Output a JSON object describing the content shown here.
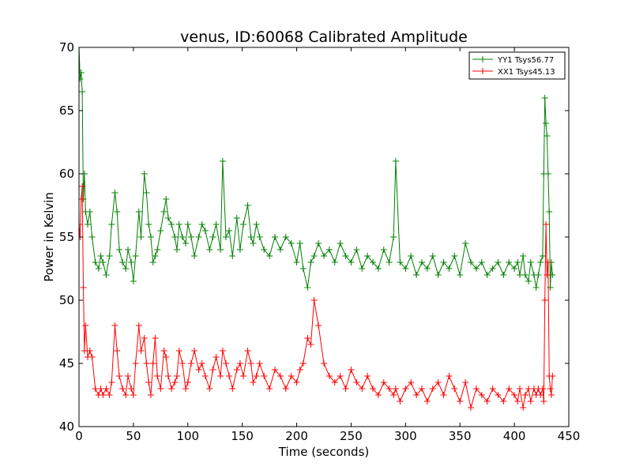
{
  "chart_data": {
    "type": "line",
    "title": "venus, ID:60068 Calibrated Amplitude",
    "xlabel": "Time (seconds)",
    "ylabel": "Power in Kelvin",
    "xlim": [
      0,
      450
    ],
    "ylim": [
      40,
      70
    ],
    "xticks": [
      0,
      50,
      100,
      150,
      200,
      250,
      300,
      350,
      400,
      450
    ],
    "yticks": [
      40,
      45,
      50,
      55,
      60,
      65,
      70
    ],
    "legend_position": "top-right",
    "marker": "+",
    "series": [
      {
        "name": "YY1 Tsys56.77",
        "color": "#008000",
        "x": [
          0,
          1,
          2,
          3,
          4,
          5,
          6,
          8,
          10,
          12,
          15,
          18,
          20,
          22,
          25,
          28,
          30,
          33,
          35,
          37,
          40,
          43,
          45,
          48,
          50,
          52,
          55,
          57,
          60,
          62,
          64,
          66,
          68,
          70,
          72,
          75,
          78,
          80,
          82,
          85,
          88,
          90,
          92,
          95,
          98,
          100,
          103,
          106,
          110,
          113,
          116,
          120,
          123,
          126,
          130,
          132,
          135,
          138,
          141,
          145,
          148,
          151,
          155,
          158,
          160,
          163,
          166,
          170,
          175,
          180,
          185,
          190,
          195,
          200,
          203,
          206,
          210,
          213,
          216,
          220,
          225,
          230,
          235,
          240,
          245,
          250,
          255,
          260,
          265,
          270,
          275,
          280,
          285,
          289,
          291,
          295,
          300,
          305,
          310,
          315,
          320,
          325,
          330,
          335,
          340,
          345,
          350,
          355,
          360,
          365,
          370,
          375,
          380,
          385,
          390,
          395,
          400,
          403,
          405,
          408,
          410,
          413,
          415,
          418,
          420,
          422,
          424,
          426,
          427,
          428,
          429,
          430,
          431,
          432,
          433,
          434,
          435
        ],
        "values": [
          70,
          67.5,
          68,
          66.5,
          58,
          60,
          57,
          56,
          57,
          55,
          53,
          52.5,
          53.5,
          53,
          52,
          53.5,
          56,
          58.5,
          57,
          54,
          53,
          52.5,
          54,
          53,
          51.5,
          53.5,
          57,
          55,
          60,
          58.5,
          56,
          55,
          53,
          53.5,
          54,
          55.5,
          57,
          58,
          56.5,
          56,
          55,
          54,
          56,
          55,
          54.5,
          56,
          55,
          53.5,
          55,
          56,
          55.5,
          54,
          55,
          56,
          54,
          61,
          55,
          55.5,
          53.5,
          56.5,
          54,
          56,
          57.5,
          55,
          54.5,
          56,
          55,
          54,
          53.5,
          55,
          54,
          55,
          54.5,
          53,
          54.5,
          52.5,
          51,
          53,
          53.5,
          54.5,
          53.5,
          54,
          53,
          54.5,
          53.5,
          53,
          54,
          52.5,
          53.5,
          53,
          52.5,
          54,
          53,
          55,
          61,
          53,
          52.5,
          53.5,
          52,
          53,
          52.5,
          53.5,
          52,
          53,
          52.5,
          53.5,
          52,
          54.5,
          53,
          52.5,
          53,
          52,
          52.5,
          53,
          52,
          53,
          52.5,
          53,
          52,
          53.5,
          52,
          51.5,
          53,
          52,
          51,
          52,
          53,
          53.5,
          60,
          66,
          64,
          63,
          60,
          57,
          51,
          53,
          52
        ]
      },
      {
        "name": "XX1 Tsys45.13",
        "color": "#ff0000",
        "x": [
          0,
          1,
          2,
          3,
          4,
          5,
          6,
          8,
          10,
          12,
          15,
          18,
          20,
          22,
          25,
          28,
          30,
          33,
          35,
          37,
          40,
          43,
          45,
          48,
          50,
          52,
          55,
          57,
          60,
          62,
          64,
          66,
          68,
          70,
          72,
          75,
          78,
          80,
          82,
          85,
          88,
          90,
          92,
          95,
          98,
          100,
          103,
          106,
          110,
          113,
          116,
          120,
          123,
          126,
          130,
          132,
          135,
          138,
          141,
          145,
          148,
          151,
          155,
          158,
          160,
          163,
          166,
          170,
          175,
          180,
          185,
          190,
          195,
          200,
          203,
          206,
          210,
          213,
          216,
          220,
          225,
          230,
          235,
          240,
          245,
          250,
          255,
          260,
          265,
          270,
          275,
          280,
          285,
          289,
          291,
          295,
          300,
          305,
          310,
          315,
          320,
          325,
          330,
          335,
          340,
          345,
          350,
          355,
          360,
          365,
          370,
          375,
          380,
          385,
          390,
          395,
          400,
          403,
          405,
          408,
          410,
          413,
          415,
          418,
          420,
          422,
          424,
          426,
          427,
          428,
          429,
          430,
          431,
          432,
          433,
          434,
          435
        ],
        "values": [
          56,
          55,
          58,
          59,
          51,
          46,
          48,
          45.5,
          46,
          45.5,
          43,
          42.5,
          43,
          42.5,
          43,
          42.5,
          43.5,
          48,
          46,
          44,
          43,
          42.5,
          44,
          43,
          42.5,
          45,
          48,
          46,
          47,
          45,
          43.5,
          42.5,
          45,
          47,
          44,
          43,
          46,
          45.5,
          44,
          43,
          43.5,
          44,
          46,
          45,
          43,
          43.5,
          45,
          46,
          44.5,
          45,
          44,
          43,
          44.5,
          45.5,
          44,
          46,
          45,
          44,
          43,
          44.5,
          45,
          44,
          46,
          45,
          43.5,
          44,
          45,
          44,
          43,
          44.5,
          44,
          43,
          44,
          43.5,
          44.5,
          45,
          47,
          46.5,
          50,
          48,
          45,
          44,
          43.5,
          44,
          43,
          44.5,
          43.5,
          43,
          44,
          43,
          42.5,
          43.5,
          43,
          42.5,
          43,
          42,
          43,
          43.5,
          42.5,
          43,
          42,
          43,
          43.5,
          42.5,
          44,
          43,
          42,
          43.5,
          41.5,
          43,
          42.5,
          42,
          43,
          42.5,
          42,
          43,
          42.5,
          42,
          43,
          41.5,
          42.5,
          43,
          42,
          43,
          42.5,
          43,
          42.5,
          43,
          42,
          50,
          56,
          52,
          53,
          44,
          43,
          42.5,
          44
        ]
      }
    ]
  }
}
